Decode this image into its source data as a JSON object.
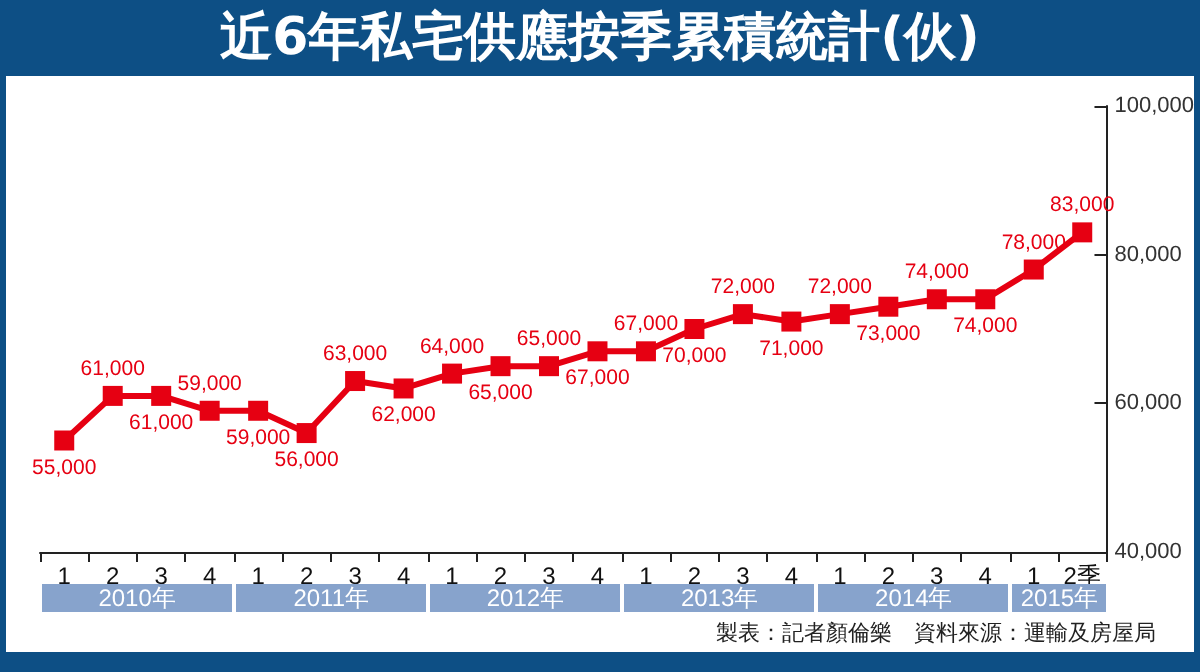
{
  "chart_data": {
    "type": "line",
    "title": "近6年私宅供應按季累積統計(伙)",
    "categories": [
      "1",
      "2",
      "3",
      "4",
      "1",
      "2",
      "3",
      "4",
      "1",
      "2",
      "3",
      "4",
      "1",
      "2",
      "3",
      "4",
      "1",
      "2",
      "3",
      "4",
      "1",
      "2季"
    ],
    "series": [
      {
        "color": "#e60012",
        "values": [
          55000,
          61000,
          61000,
          59000,
          59000,
          56000,
          63000,
          62000,
          64000,
          65000,
          65000,
          67000,
          67000,
          70000,
          72000,
          71000,
          72000,
          73000,
          74000,
          74000,
          78000,
          83000
        ]
      }
    ],
    "ylim": [
      40000,
      100000
    ],
    "yticks": [
      {
        "value": 40000,
        "label": "40,000"
      },
      {
        "value": 60000,
        "label": "60,000"
      },
      {
        "value": 80000,
        "label": "80,000"
      },
      {
        "value": 100000,
        "label": "100,000"
      }
    ],
    "value_labels": [
      "55,000",
      "61,000",
      "61,000",
      "59,000",
      "59,000",
      "56,000",
      "63,000",
      "62,000",
      "64,000",
      "65,000",
      "65,000",
      "67,000",
      "67,000",
      "70,000",
      "72,000",
      "71,000",
      "72,000",
      "73,000",
      "74,000",
      "74,000",
      "78,000",
      "83,000"
    ],
    "annotations": [
      "2010年",
      "2011年",
      "2012年",
      "2013年",
      "2014年",
      "2015年",
      "製表：記者顏倫樂　資料來源：運輸及房屋局"
    ],
    "marker": "square",
    "line_style": "solid"
  }
}
